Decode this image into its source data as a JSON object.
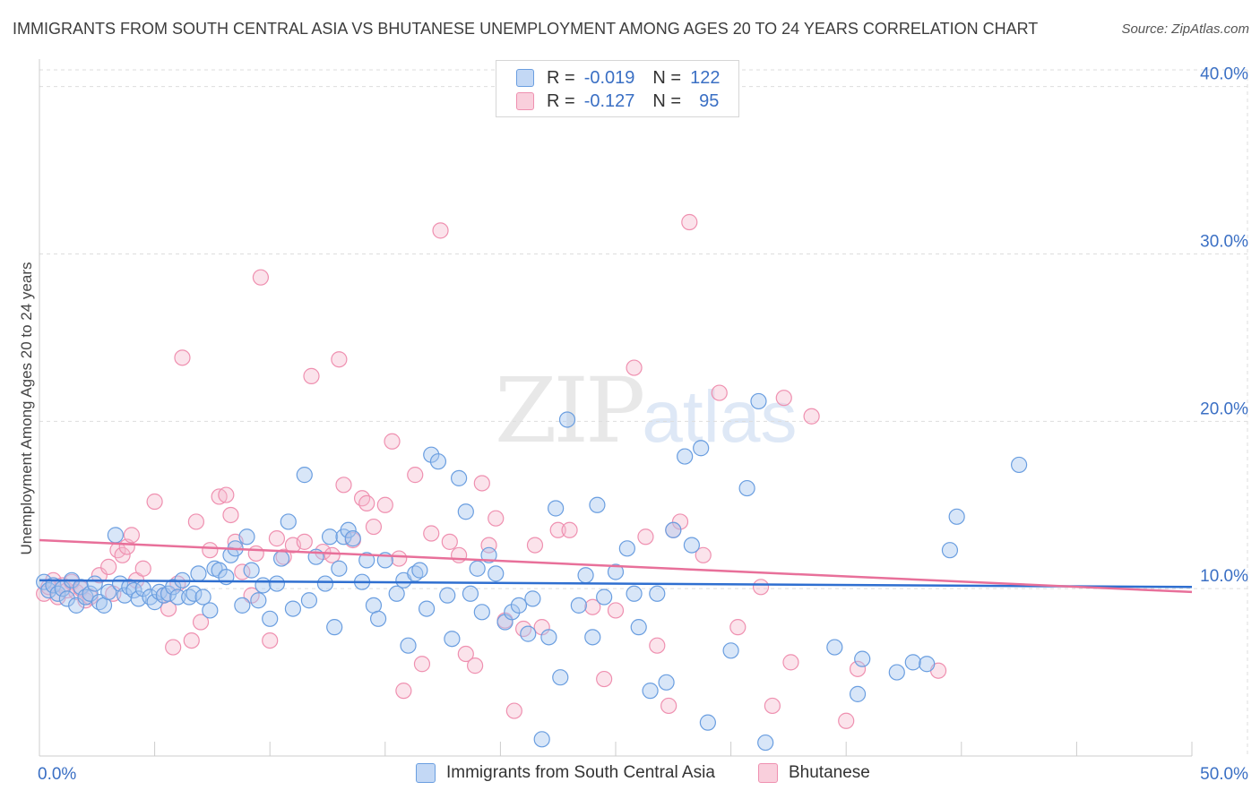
{
  "title": "IMMIGRANTS FROM SOUTH CENTRAL ASIA VS BHUTANESE UNEMPLOYMENT AMONG AGES 20 TO 24 YEARS CORRELATION CHART",
  "source": "Source: ZipAtlas.com",
  "watermark": {
    "zip": "ZIP",
    "atlas": "atlas"
  },
  "colors": {
    "blue_fill": "#a9c8f0",
    "blue_stroke": "#6a9ee0",
    "blue_line": "#2f6fd0",
    "pink_fill": "#f6b8cc",
    "pink_stroke": "#ef90b0",
    "pink_line": "#e8709a",
    "tick_label": "#3a6fc4",
    "grid": "#dddddd"
  },
  "legend": {
    "rows": [
      {
        "r_label": "R =",
        "r_value": "-0.019",
        "n_label": "N =",
        "n_value": "122",
        "series": "blue"
      },
      {
        "r_label": "R =",
        "r_value": "-0.127",
        "n_label": "N =",
        "n_value": "95",
        "series": "pink"
      }
    ]
  },
  "bottom_legend": [
    {
      "label": "Immigrants from South Central Asia",
      "series": "blue"
    },
    {
      "label": "Bhutanese",
      "series": "pink"
    }
  ],
  "chart_data": {
    "type": "scatter",
    "title": "IMMIGRANTS FROM SOUTH CENTRAL ASIA VS BHUTANESE UNEMPLOYMENT AMONG AGES 20 TO 24 YEARS CORRELATION CHART",
    "xlabel": "",
    "ylabel": "Unemployment Among Ages 20 to 24 years",
    "xlim": [
      0,
      50
    ],
    "ylim": [
      0,
      41
    ],
    "x_tick_labels": [
      "0.0%",
      "50.0%"
    ],
    "y_ticks": [
      10,
      20,
      30,
      40
    ],
    "y_tick_labels": [
      "10.0%",
      "20.0%",
      "30.0%",
      "40.0%"
    ],
    "grid": true,
    "legend_position": "top-center",
    "series": [
      {
        "name": "Immigrants from South Central Asia",
        "color": "blue",
        "r": -0.019,
        "n": 122,
        "trend": {
          "x": [
            0,
            50
          ],
          "y": [
            10.5,
            10.1
          ]
        },
        "points": [
          [
            0.2,
            10.4
          ],
          [
            0.4,
            9.9
          ],
          [
            0.6,
            10.2
          ],
          [
            0.8,
            9.7
          ],
          [
            1.0,
            10.0
          ],
          [
            1.2,
            9.4
          ],
          [
            1.4,
            10.5
          ],
          [
            1.6,
            9.0
          ],
          [
            1.8,
            10.1
          ],
          [
            2.0,
            9.5
          ],
          [
            2.2,
            9.7
          ],
          [
            2.4,
            10.3
          ],
          [
            2.6,
            9.2
          ],
          [
            2.8,
            9.0
          ],
          [
            3.0,
            9.8
          ],
          [
            3.3,
            13.2
          ],
          [
            3.5,
            10.3
          ],
          [
            3.7,
            9.6
          ],
          [
            3.9,
            10.1
          ],
          [
            4.1,
            9.9
          ],
          [
            4.3,
            9.4
          ],
          [
            4.5,
            10.0
          ],
          [
            4.8,
            9.5
          ],
          [
            5.0,
            9.2
          ],
          [
            5.2,
            9.8
          ],
          [
            5.4,
            9.6
          ],
          [
            5.6,
            9.7
          ],
          [
            5.8,
            10.1
          ],
          [
            6.0,
            9.5
          ],
          [
            6.2,
            10.5
          ],
          [
            6.5,
            9.5
          ],
          [
            6.7,
            9.7
          ],
          [
            6.9,
            10.9
          ],
          [
            7.1,
            9.5
          ],
          [
            7.4,
            8.7
          ],
          [
            7.6,
            11.2
          ],
          [
            7.8,
            11.1
          ],
          [
            8.1,
            10.7
          ],
          [
            8.3,
            12.0
          ],
          [
            8.5,
            12.4
          ],
          [
            8.8,
            9.0
          ],
          [
            9.0,
            13.1
          ],
          [
            9.2,
            11.1
          ],
          [
            9.5,
            9.3
          ],
          [
            9.7,
            10.2
          ],
          [
            10.0,
            8.2
          ],
          [
            10.3,
            10.3
          ],
          [
            10.5,
            11.8
          ],
          [
            10.8,
            14.0
          ],
          [
            11.0,
            8.8
          ],
          [
            11.5,
            16.8
          ],
          [
            11.7,
            9.3
          ],
          [
            12.0,
            11.9
          ],
          [
            12.4,
            10.3
          ],
          [
            12.6,
            13.1
          ],
          [
            12.8,
            7.7
          ],
          [
            13.0,
            11.2
          ],
          [
            13.2,
            13.1
          ],
          [
            13.4,
            13.5
          ],
          [
            13.6,
            13.0
          ],
          [
            14.0,
            10.4
          ],
          [
            14.2,
            11.7
          ],
          [
            14.5,
            9.0
          ],
          [
            14.7,
            8.2
          ],
          [
            15.0,
            11.7
          ],
          [
            15.5,
            9.7
          ],
          [
            15.8,
            10.5
          ],
          [
            16.0,
            6.6
          ],
          [
            16.3,
            10.9
          ],
          [
            16.5,
            11.1
          ],
          [
            16.8,
            8.8
          ],
          [
            17.0,
            18.0
          ],
          [
            17.3,
            17.6
          ],
          [
            17.7,
            9.6
          ],
          [
            17.9,
            7.0
          ],
          [
            18.2,
            16.6
          ],
          [
            18.5,
            14.6
          ],
          [
            18.7,
            9.7
          ],
          [
            19.0,
            11.2
          ],
          [
            19.2,
            8.6
          ],
          [
            19.5,
            12.0
          ],
          [
            19.8,
            10.9
          ],
          [
            20.2,
            8.0
          ],
          [
            20.5,
            8.6
          ],
          [
            20.8,
            9.0
          ],
          [
            21.2,
            7.3
          ],
          [
            21.4,
            9.4
          ],
          [
            21.8,
            1.0
          ],
          [
            22.1,
            7.1
          ],
          [
            22.4,
            14.8
          ],
          [
            22.6,
            4.7
          ],
          [
            22.9,
            20.1
          ],
          [
            23.4,
            9.0
          ],
          [
            23.7,
            10.8
          ],
          [
            24.0,
            7.1
          ],
          [
            24.2,
            15.0
          ],
          [
            24.5,
            9.5
          ],
          [
            25.0,
            11.0
          ],
          [
            25.5,
            12.4
          ],
          [
            25.8,
            9.7
          ],
          [
            26.0,
            7.7
          ],
          [
            26.5,
            3.9
          ],
          [
            26.8,
            9.7
          ],
          [
            27.2,
            4.4
          ],
          [
            27.5,
            13.5
          ],
          [
            28.0,
            17.9
          ],
          [
            28.3,
            12.6
          ],
          [
            28.7,
            18.4
          ],
          [
            29.0,
            2.0
          ],
          [
            30.0,
            6.3
          ],
          [
            30.7,
            16.0
          ],
          [
            31.2,
            21.2
          ],
          [
            31.5,
            0.8
          ],
          [
            34.5,
            6.5
          ],
          [
            35.5,
            3.7
          ],
          [
            35.7,
            5.8
          ],
          [
            37.2,
            5.0
          ],
          [
            37.9,
            5.6
          ],
          [
            38.5,
            5.5
          ],
          [
            39.5,
            12.3
          ],
          [
            39.8,
            14.3
          ],
          [
            42.5,
            17.4
          ]
        ]
      },
      {
        "name": "Bhutanese",
        "color": "pink",
        "r": -0.127,
        "n": 95,
        "trend": {
          "x": [
            0,
            50
          ],
          "y": [
            12.9,
            9.8
          ]
        },
        "points": [
          [
            0.2,
            9.7
          ],
          [
            0.4,
            10.1
          ],
          [
            0.6,
            10.5
          ],
          [
            0.8,
            9.5
          ],
          [
            1.0,
            10.2
          ],
          [
            1.2,
            9.9
          ],
          [
            1.4,
            10.4
          ],
          [
            1.6,
            9.8
          ],
          [
            1.8,
            10.0
          ],
          [
            2.0,
            9.3
          ],
          [
            2.2,
            9.5
          ],
          [
            2.6,
            10.8
          ],
          [
            3.0,
            11.3
          ],
          [
            3.2,
            9.7
          ],
          [
            3.4,
            12.3
          ],
          [
            3.6,
            12.0
          ],
          [
            3.8,
            12.5
          ],
          [
            4.0,
            13.2
          ],
          [
            4.2,
            10.5
          ],
          [
            4.5,
            11.2
          ],
          [
            5.0,
            15.2
          ],
          [
            5.4,
            9.6
          ],
          [
            5.6,
            8.8
          ],
          [
            5.8,
            6.5
          ],
          [
            6.0,
            10.3
          ],
          [
            6.2,
            23.8
          ],
          [
            6.6,
            6.9
          ],
          [
            6.8,
            14.0
          ],
          [
            7.0,
            8.0
          ],
          [
            7.4,
            12.3
          ],
          [
            7.8,
            15.5
          ],
          [
            8.1,
            15.6
          ],
          [
            8.3,
            14.4
          ],
          [
            8.5,
            12.8
          ],
          [
            8.8,
            11.0
          ],
          [
            9.2,
            9.6
          ],
          [
            9.4,
            12.1
          ],
          [
            9.6,
            28.6
          ],
          [
            10.0,
            6.9
          ],
          [
            10.3,
            13.0
          ],
          [
            10.6,
            11.9
          ],
          [
            11.0,
            12.6
          ],
          [
            11.5,
            12.8
          ],
          [
            11.8,
            22.7
          ],
          [
            12.3,
            12.2
          ],
          [
            12.7,
            12.0
          ],
          [
            13.0,
            23.7
          ],
          [
            13.2,
            16.2
          ],
          [
            13.6,
            12.9
          ],
          [
            14.0,
            15.4
          ],
          [
            14.2,
            15.1
          ],
          [
            14.5,
            13.7
          ],
          [
            15.0,
            15.0
          ],
          [
            15.3,
            18.8
          ],
          [
            15.6,
            11.8
          ],
          [
            15.8,
            3.9
          ],
          [
            16.3,
            16.8
          ],
          [
            16.6,
            5.5
          ],
          [
            17.0,
            13.3
          ],
          [
            17.4,
            31.4
          ],
          [
            17.8,
            12.8
          ],
          [
            18.2,
            12.0
          ],
          [
            18.5,
            6.1
          ],
          [
            18.9,
            5.4
          ],
          [
            19.2,
            16.3
          ],
          [
            19.5,
            12.6
          ],
          [
            19.8,
            14.2
          ],
          [
            20.2,
            8.1
          ],
          [
            20.6,
            2.7
          ],
          [
            21.0,
            7.6
          ],
          [
            21.5,
            12.6
          ],
          [
            21.8,
            7.7
          ],
          [
            22.5,
            13.5
          ],
          [
            23.0,
            13.5
          ],
          [
            24.0,
            8.9
          ],
          [
            24.5,
            4.6
          ],
          [
            25.0,
            8.7
          ],
          [
            25.8,
            23.2
          ],
          [
            26.3,
            13.1
          ],
          [
            26.8,
            6.6
          ],
          [
            27.3,
            3.0
          ],
          [
            27.5,
            13.5
          ],
          [
            27.8,
            14.0
          ],
          [
            28.2,
            31.9
          ],
          [
            28.8,
            12.0
          ],
          [
            29.5,
            21.7
          ],
          [
            30.3,
            7.7
          ],
          [
            31.3,
            10.1
          ],
          [
            31.8,
            3.0
          ],
          [
            32.3,
            21.4
          ],
          [
            32.6,
            5.6
          ],
          [
            33.5,
            20.3
          ],
          [
            35.0,
            2.1
          ],
          [
            35.5,
            5.2
          ],
          [
            39.0,
            5.1
          ]
        ]
      }
    ]
  }
}
